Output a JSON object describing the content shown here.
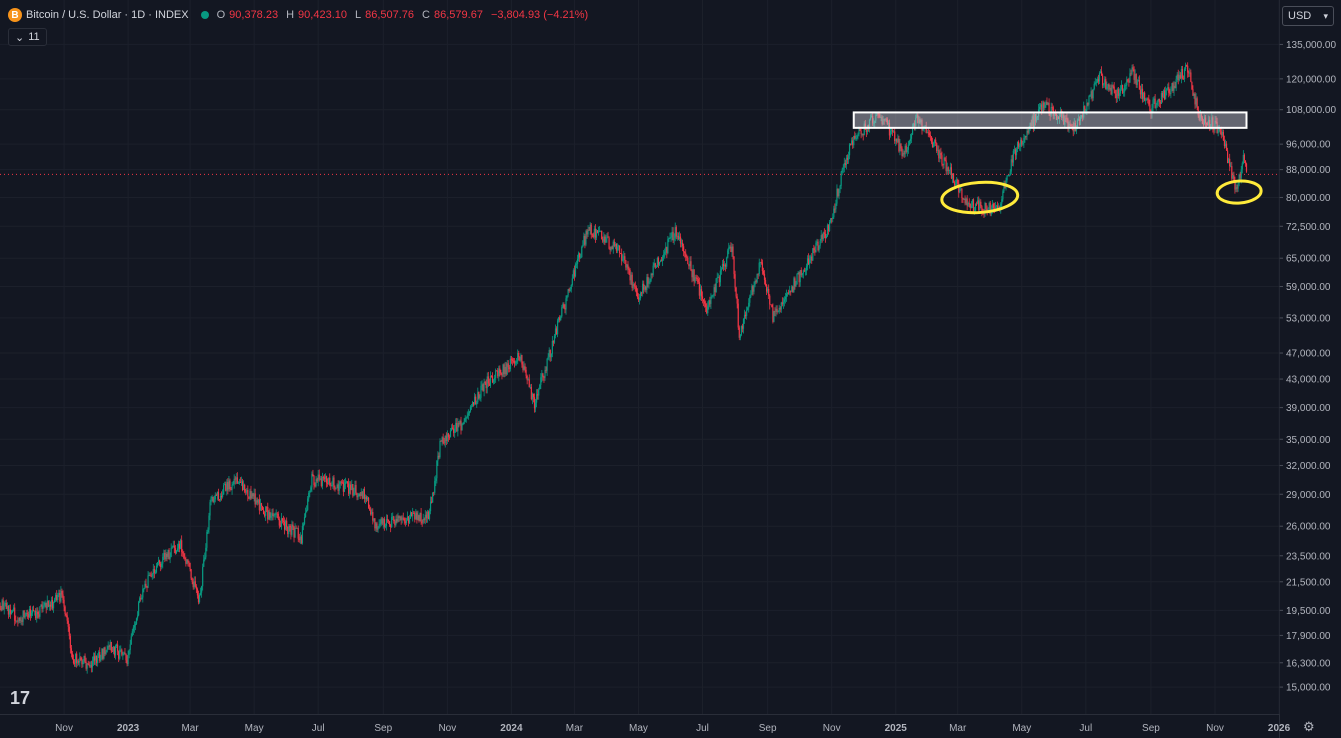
{
  "header": {
    "title": "Bitcoin / U.S. Dollar · 1D · INDEX",
    "open_key": "O",
    "open": "90,378.23",
    "high_key": "H",
    "high": "90,423.10",
    "low_key": "L",
    "low": "86,507.76",
    "close_key": "C",
    "close": "86,579.67",
    "change": "−3,804.93 (−4.21%)",
    "indicator_count": "11",
    "currency": "USD",
    "logo_symbol": "B"
  },
  "colors": {
    "background": "#131722",
    "up": "#089981",
    "down": "#f23645",
    "annotation": "#ffeb3b"
  },
  "chart_data": {
    "type": "candlestick",
    "series_name": "Bitcoin / U.S. Dollar",
    "y_scale": "log",
    "ylim": [
      14500,
      138000
    ],
    "y_ticks": [
      135000,
      120000,
      108000,
      96000,
      88000,
      80000,
      72500,
      65000,
      59000,
      53000,
      47000,
      43000,
      39000,
      35000,
      32000,
      29000,
      26000,
      23500,
      21500,
      19500,
      17900,
      16300,
      15000
    ],
    "y_tick_labels": [
      "135,000.00",
      "120,000.00",
      "108,000.00",
      "96,000.00",
      "88,000.00",
      "80,000.00",
      "72,500.00",
      "65,000.00",
      "59,000.00",
      "53,000.00",
      "47,000.00",
      "43,000.00",
      "39,000.00",
      "35,000.00",
      "32,000.00",
      "29,000.00",
      "26,000.00",
      "23,500.00",
      "21,500.00",
      "19,500.00",
      "17,900.00",
      "16,300.00",
      "15,000.00"
    ],
    "xlim": [
      "2022-09-01",
      "2025-12-31"
    ],
    "x_ticks": [
      "2022-11-01",
      "2023-01-01",
      "2023-03-01",
      "2023-05-01",
      "2023-07-01",
      "2023-09-01",
      "2023-11-01",
      "2024-01-01",
      "2024-03-01",
      "2024-05-01",
      "2024-07-01",
      "2024-09-01",
      "2024-11-01",
      "2025-01-01",
      "2025-03-01",
      "2025-05-01",
      "2025-07-01",
      "2025-09-01",
      "2025-11-01",
      "2026-01-01"
    ],
    "x_tick_labels": [
      "Nov",
      "2023",
      "Mar",
      "May",
      "Jul",
      "Sep",
      "Nov",
      "2024",
      "Mar",
      "May",
      "Jul",
      "Sep",
      "Nov",
      "2025",
      "Mar",
      "May",
      "Jul",
      "Sep",
      "Nov",
      "2026"
    ],
    "price_path": [
      [
        "2022-09-01",
        20000
      ],
      [
        "2022-09-20",
        19000
      ],
      [
        "2022-10-10",
        19500
      ],
      [
        "2022-10-31",
        20500
      ],
      [
        "2022-11-09",
        16500
      ],
      [
        "2022-11-25",
        16300
      ],
      [
        "2022-12-15",
        17200
      ],
      [
        "2022-12-31",
        16600
      ],
      [
        "2023-01-14",
        20800
      ],
      [
        "2023-01-31",
        23000
      ],
      [
        "2023-02-20",
        24500
      ],
      [
        "2023-03-10",
        20200
      ],
      [
        "2023-03-20",
        28000
      ],
      [
        "2023-04-14",
        30500
      ],
      [
        "2023-05-10",
        27500
      ],
      [
        "2023-06-15",
        25000
      ],
      [
        "2023-06-25",
        30500
      ],
      [
        "2023-07-15",
        30200
      ],
      [
        "2023-08-15",
        29000
      ],
      [
        "2023-08-25",
        26000
      ],
      [
        "2023-09-15",
        26500
      ],
      [
        "2023-10-15",
        27000
      ],
      [
        "2023-10-25",
        34500
      ],
      [
        "2023-11-15",
        37000
      ],
      [
        "2023-12-05",
        42000
      ],
      [
        "2024-01-10",
        46500
      ],
      [
        "2024-01-23",
        39500
      ],
      [
        "2024-02-15",
        52000
      ],
      [
        "2024-03-14",
        72000
      ],
      [
        "2024-04-12",
        67000
      ],
      [
        "2024-05-01",
        57000
      ],
      [
        "2024-06-05",
        71000
      ],
      [
        "2024-07-05",
        55000
      ],
      [
        "2024-07-29",
        68000
      ],
      [
        "2024-08-05",
        50000
      ],
      [
        "2024-08-25",
        64000
      ],
      [
        "2024-09-06",
        53000
      ],
      [
        "2024-10-29",
        72000
      ],
      [
        "2024-11-12",
        88000
      ],
      [
        "2024-11-22",
        98500
      ],
      [
        "2024-12-17",
        106000
      ],
      [
        "2025-01-09",
        92500
      ],
      [
        "2025-01-21",
        106000
      ],
      [
        "2025-02-24",
        86000
      ],
      [
        "2025-03-11",
        78000
      ],
      [
        "2025-04-08",
        76500
      ],
      [
        "2025-04-25",
        94500
      ],
      [
        "2025-05-22",
        110000
      ],
      [
        "2025-06-22",
        101000
      ],
      [
        "2025-07-14",
        121000
      ],
      [
        "2025-08-01",
        113500
      ],
      [
        "2025-08-14",
        122500
      ],
      [
        "2025-09-01",
        108500
      ],
      [
        "2025-10-06",
        124500
      ],
      [
        "2025-10-17",
        106000
      ],
      [
        "2025-11-06",
        101000
      ],
      [
        "2025-11-21",
        82000
      ],
      [
        "2025-11-28",
        91500
      ],
      [
        "2025-12-01",
        86580
      ]
    ],
    "resistance_zone": {
      "x_start": "2024-11-22",
      "x_end": "2025-12-01",
      "y_low": 101500,
      "y_high": 107000
    },
    "highlight_circles": [
      {
        "x_center": "2025-03-22",
        "y_center": 80000
      },
      {
        "x_center": "2025-11-24",
        "y_center": 81500
      }
    ],
    "last_price_line": 86579.67
  }
}
